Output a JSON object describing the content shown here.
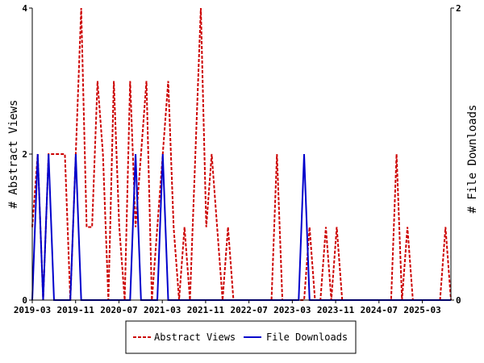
{
  "chart_data": {
    "type": "line",
    "x_labels": [
      "2019-03",
      "2019-11",
      "2020-07",
      "2021-03",
      "2021-11",
      "2022-07",
      "2023-03",
      "2023-11",
      "2024-07",
      "2025-03"
    ],
    "ylabel_left": "# Abstract Views",
    "ylabel_right": "# File Downloads",
    "ylim_left": [
      0,
      4
    ],
    "ylim_right": [
      0,
      2
    ],
    "yticks_left": [
      "0",
      "2",
      "4"
    ],
    "yticks_right": [
      "0",
      "2"
    ],
    "legend_position": "bottom",
    "grid": false,
    "series": [
      {
        "name": "Abstract Views",
        "axis": "left",
        "color": "#cc0000",
        "style": "dashed",
        "values": [
          1,
          2,
          0,
          2,
          2,
          2,
          2,
          0,
          2,
          4,
          1,
          1,
          3,
          2,
          0,
          3,
          1,
          0,
          3,
          1,
          2,
          3,
          0,
          1,
          2,
          3,
          1,
          0,
          1,
          0,
          2,
          4,
          1,
          2,
          1,
          0,
          1,
          0,
          0,
          0,
          0,
          0,
          0,
          0,
          0,
          2,
          0,
          0,
          0,
          0,
          0,
          1,
          0,
          0,
          1,
          0,
          1,
          0,
          0,
          0,
          0,
          0,
          0,
          0,
          0,
          0,
          0,
          2,
          0,
          1,
          0,
          0,
          0,
          0,
          0,
          0,
          1,
          0
        ]
      },
      {
        "name": "File Downloads",
        "axis": "right",
        "color": "#0000cc",
        "style": "solid",
        "values": [
          0,
          1,
          0,
          1,
          0,
          0,
          0,
          0,
          1,
          0,
          0,
          0,
          0,
          0,
          0,
          0,
          0,
          0,
          0,
          1,
          0,
          0,
          0,
          0,
          1,
          0,
          0,
          0,
          0,
          0,
          0,
          0,
          0,
          0,
          0,
          0,
          0,
          0,
          0,
          0,
          0,
          0,
          0,
          0,
          0,
          0,
          0,
          0,
          0,
          0,
          1,
          0,
          0,
          0,
          0,
          0,
          0,
          0,
          0,
          0,
          0,
          0,
          0,
          0,
          0,
          0,
          0,
          0,
          0,
          0,
          0,
          0,
          0,
          0,
          0,
          0,
          0,
          0
        ]
      }
    ]
  }
}
